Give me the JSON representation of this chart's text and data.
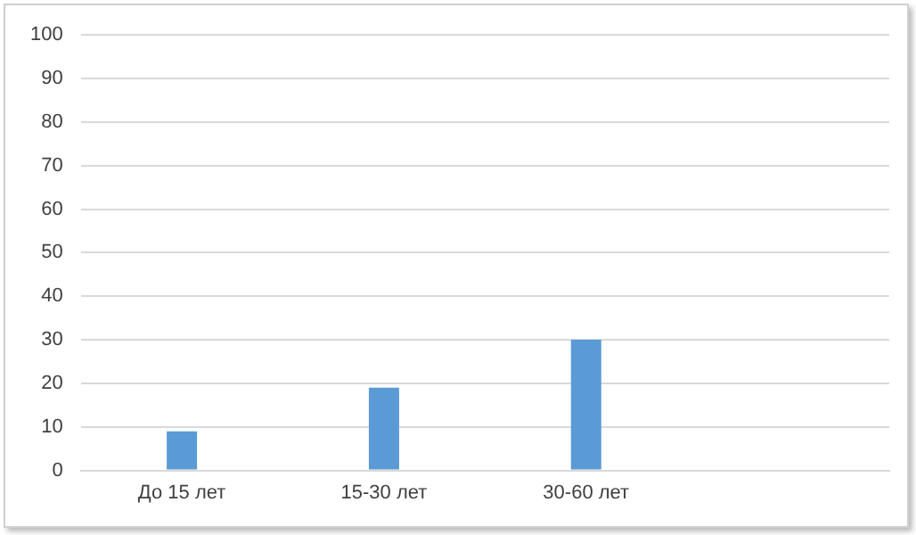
{
  "chart_data": {
    "type": "bar",
    "categories": [
      "До 15 лет",
      "15-30 лет",
      "30-60 лет",
      null
    ],
    "values": [
      9,
      19,
      30,
      null
    ],
    "color": "#5b9bd5",
    "ylim": [
      0,
      100
    ],
    "yticks": [
      0,
      10,
      20,
      30,
      40,
      50,
      60,
      70,
      80,
      90,
      100
    ],
    "grid": "y",
    "legend": false
  }
}
